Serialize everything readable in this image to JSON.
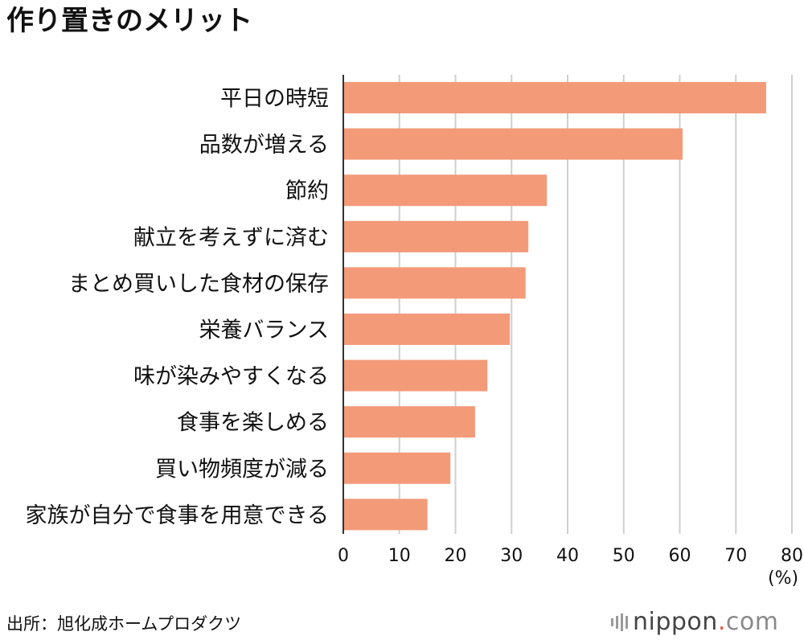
{
  "title": "作り置きのメリット",
  "unit_label": "(%)",
  "source": "出所：旭化成ホームプロダクツ",
  "logo": {
    "name": "nippon",
    "dot": ".",
    "tld": "com"
  },
  "colors": {
    "bar": "#f39a79",
    "grid": "#cfcfcf",
    "axis": "#333333"
  },
  "chart_data": {
    "type": "bar",
    "orientation": "horizontal",
    "categories": [
      "平日の時短",
      "品数が増える",
      "節約",
      "献立を考えずに済む",
      "まとめ買いした食材の保存",
      "栄養バランス",
      "味が染みやすくなる",
      "食事を楽しめる",
      "買い物頻度が減る",
      "家族が自分で食事を用意できる"
    ],
    "values": [
      75.4,
      60.5,
      36.3,
      33.0,
      32.5,
      29.7,
      25.7,
      23.5,
      19.1,
      15.0
    ],
    "xlim": [
      0,
      80
    ],
    "xticks": [
      0,
      10,
      20,
      30,
      40,
      50,
      60,
      70,
      80
    ],
    "grid": true
  }
}
